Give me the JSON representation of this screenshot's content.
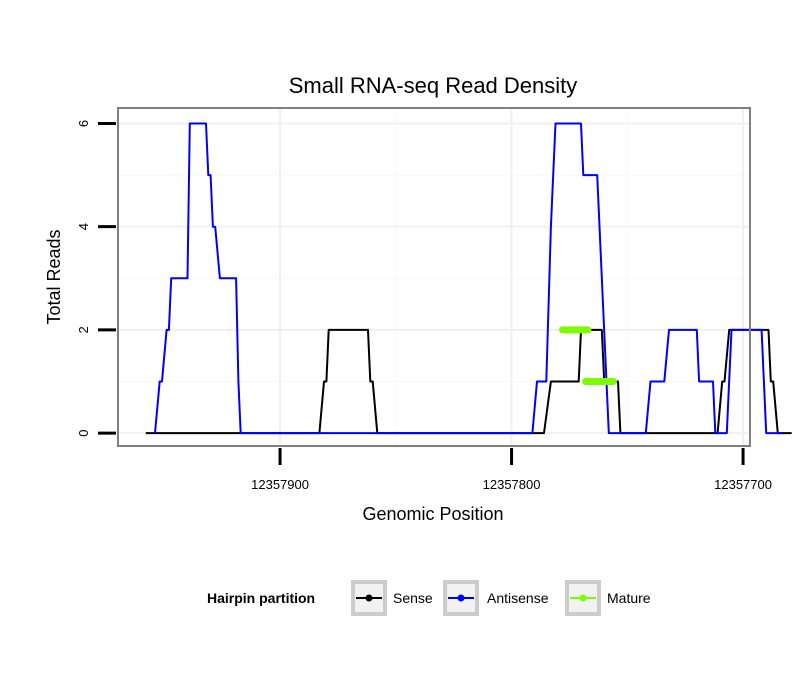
{
  "chart_data": {
    "type": "line",
    "title": "Small RNA-seq Read Density",
    "xlabel": "Genomic Position",
    "ylabel": "Total Reads",
    "xlim": [
      12357970,
      12357697
    ],
    "ylim": [
      -0.25,
      6.3
    ],
    "x_reversed": true,
    "grid": true,
    "x_ticks": [
      12357900,
      12357800,
      12357700
    ],
    "x_tick_labels": [
      "12357900",
      "12357800",
      "12357700"
    ],
    "y_ticks": [
      0,
      2,
      4,
      6
    ],
    "y_tick_labels": [
      "0",
      "2",
      "4",
      "6"
    ],
    "legend": {
      "title": "Hairpin partition",
      "position": "bottom",
      "entries": [
        "Sense",
        "Antisense",
        "Mature"
      ]
    },
    "colors": {
      "Sense": "#000000",
      "Antisense": "#0000ff",
      "Mature": "#7cfc00"
    },
    "series": [
      {
        "name": "Sense",
        "points": [
          [
            12357958,
            0
          ],
          [
            12357883,
            0
          ],
          [
            12357881,
            1
          ],
          [
            12357880,
            1
          ],
          [
            12357879,
            2
          ],
          [
            12357862,
            2
          ],
          [
            12357861,
            1
          ],
          [
            12357860,
            1
          ],
          [
            12357858,
            0
          ],
          [
            12357786,
            0
          ],
          [
            12357783,
            1
          ],
          [
            12357771,
            1
          ],
          [
            12357770,
            2
          ],
          [
            12357761,
            2
          ],
          [
            12357760,
            1
          ],
          [
            12357754,
            1
          ],
          [
            12357753,
            0
          ],
          [
            12357738,
            0
          ],
          [
            12357736,
            0
          ],
          [
            12357737,
            0
          ],
          [
            12357711,
            0
          ],
          [
            12357709,
            1
          ],
          [
            12357708,
            1
          ],
          [
            12357706,
            2
          ],
          [
            12357689,
            2
          ],
          [
            12357688,
            1
          ],
          [
            12357687,
            1
          ],
          [
            12357685,
            0
          ],
          [
            12357679,
            0
          ]
        ]
      },
      {
        "name": "Antisense",
        "points": [
          [
            12357954,
            0
          ],
          [
            12357952,
            1
          ],
          [
            12357951,
            1
          ],
          [
            12357949,
            2
          ],
          [
            12357948,
            2
          ],
          [
            12357947,
            3
          ],
          [
            12357940,
            3
          ],
          [
            12357939,
            6
          ],
          [
            12357932,
            6
          ],
          [
            12357931,
            5
          ],
          [
            12357930,
            5
          ],
          [
            12357929,
            4
          ],
          [
            12357928,
            4
          ],
          [
            12357926,
            3
          ],
          [
            12357919,
            3
          ],
          [
            12357918,
            1
          ],
          [
            12357917,
            0
          ],
          [
            12357864,
            0
          ],
          [
            12357791,
            0
          ],
          [
            12357789,
            1
          ],
          [
            12357785,
            1
          ],
          [
            12357783,
            4
          ],
          [
            12357781,
            6
          ],
          [
            12357770,
            6
          ],
          [
            12357769,
            5
          ],
          [
            12357763,
            5
          ],
          [
            12357758,
            0
          ],
          [
            12357742,
            0
          ],
          [
            12357740,
            1
          ],
          [
            12357734,
            1
          ],
          [
            12357732,
            2
          ],
          [
            12357720,
            2
          ],
          [
            12357719,
            1
          ],
          [
            12357713,
            1
          ],
          [
            12357712,
            0
          ],
          [
            12357707,
            0
          ],
          [
            12357705,
            2
          ],
          [
            12357692,
            2
          ],
          [
            12357690,
            0
          ],
          [
            12357683,
            0
          ]
        ]
      },
      {
        "name": "Mature",
        "segments": [
          {
            "x": [
              12357778,
              12357767
            ],
            "y": 2
          },
          {
            "x": [
              12357768,
              12357756
            ],
            "y": 1
          }
        ]
      }
    ]
  }
}
